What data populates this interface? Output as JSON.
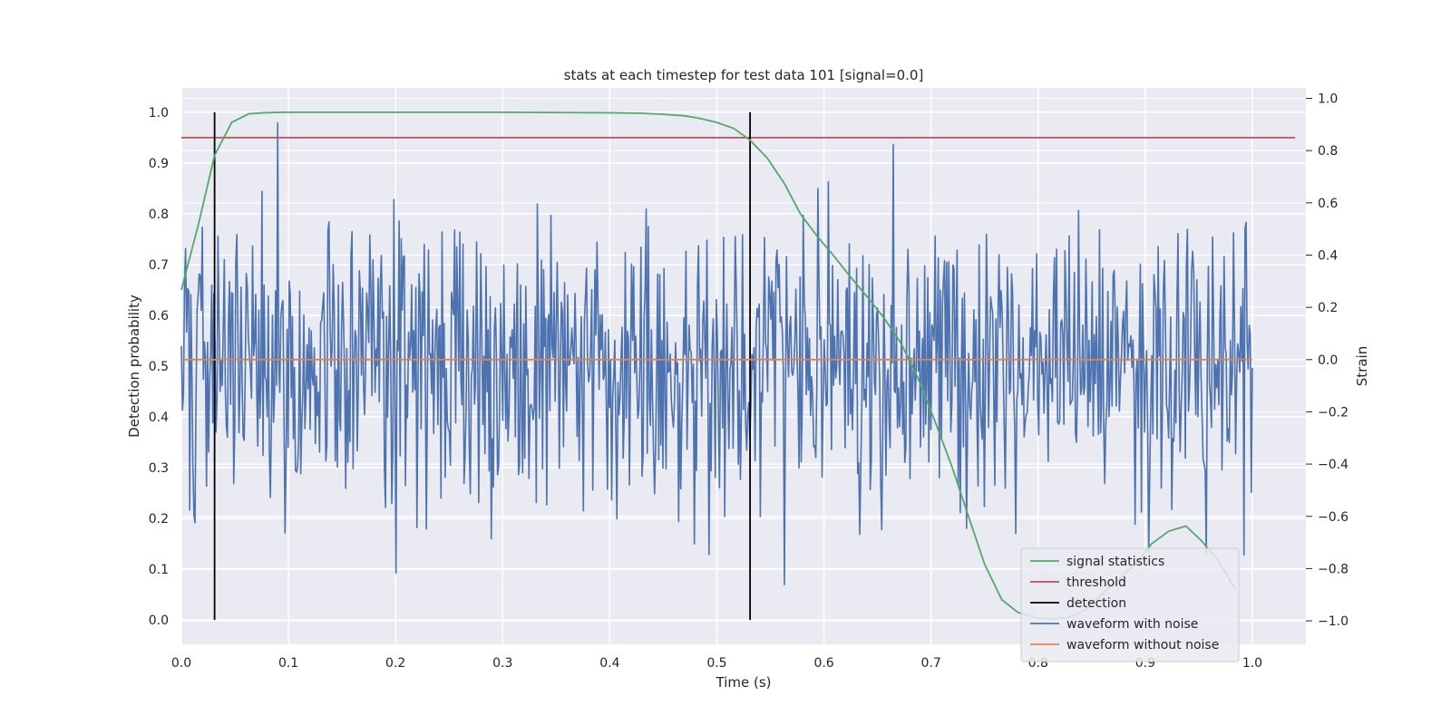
{
  "chart_data": {
    "type": "line",
    "title": "stats at each timestep for test data 101 [signal=0.0]",
    "xlabel": "Time (s)",
    "ylabel": "Detection probability",
    "ylabel_right": "Strain",
    "xlim": [
      0.0,
      1.05
    ],
    "ylim": [
      -0.048,
      1.048
    ],
    "ylim_right": [
      -1.09,
      1.04
    ],
    "x_ticks": [
      "0.0",
      "0.1",
      "0.2",
      "0.3",
      "0.4",
      "0.5",
      "0.6",
      "0.7",
      "0.8",
      "0.9",
      "1.0"
    ],
    "y_ticks": [
      "0.0",
      "0.1",
      "0.2",
      "0.3",
      "0.4",
      "0.5",
      "0.6",
      "0.7",
      "0.8",
      "0.9",
      "1.0"
    ],
    "y_ticks_right": [
      "−1.0",
      "−0.8",
      "−0.6",
      "−0.4",
      "−0.2",
      "0.0",
      "0.2",
      "0.4",
      "0.6",
      "0.8",
      "1.0"
    ],
    "grid": true,
    "legend_position": "lower-right",
    "series": [
      {
        "name": "signal statistics",
        "axis": "left",
        "color": "#55a868",
        "x": [
          0.0,
          0.016,
          0.031,
          0.047,
          0.063,
          0.078,
          0.094,
          0.11,
          0.2,
          0.3,
          0.4,
          0.43,
          0.45,
          0.47,
          0.484,
          0.5,
          0.516,
          0.531,
          0.547,
          0.563,
          0.578,
          0.594,
          0.61,
          0.625,
          0.641,
          0.656,
          0.672,
          0.688,
          0.703,
          0.719,
          0.734,
          0.75,
          0.766,
          0.781,
          0.797,
          0.813,
          0.828,
          0.844,
          0.859,
          0.875,
          0.891,
          0.906,
          0.922,
          0.938,
          0.953,
          0.969,
          0.984
        ],
        "values": [
          0.65,
          0.78,
          0.915,
          0.98,
          0.997,
          0.999,
          1.0,
          1.0,
          1.0,
          1.0,
          0.999,
          0.998,
          0.996,
          0.993,
          0.988,
          0.98,
          0.968,
          0.945,
          0.91,
          0.86,
          0.8,
          0.755,
          0.715,
          0.675,
          0.635,
          0.595,
          0.545,
          0.475,
          0.395,
          0.305,
          0.21,
          0.11,
          0.04,
          0.015,
          0.005,
          0.002,
          0.005,
          0.02,
          0.05,
          0.08,
          0.11,
          0.15,
          0.175,
          0.185,
          0.155,
          0.115,
          0.06
        ]
      },
      {
        "name": "threshold",
        "axis": "left",
        "color": "#c44e52",
        "x": [
          0.0,
          1.04
        ],
        "values": [
          0.95,
          0.95
        ]
      },
      {
        "name": "detection",
        "axis": "left",
        "color": "#000000",
        "type": "vlines",
        "x": [
          0.031,
          0.531
        ],
        "ymin": 0.0,
        "ymax": 1.0
      },
      {
        "name": "waveform with noise",
        "axis": "right",
        "color": "#4c72b0",
        "type": "noise",
        "x_range": [
          0.0,
          1.0
        ],
        "n_points": 1024,
        "std": 0.28,
        "seed": 101,
        "min": -1.0,
        "max": 1.0
      },
      {
        "name": "waveform without noise",
        "axis": "right",
        "color": "#dd8452",
        "x": [
          0.0,
          1.0
        ],
        "values": [
          0.0,
          0.0
        ]
      }
    ]
  }
}
